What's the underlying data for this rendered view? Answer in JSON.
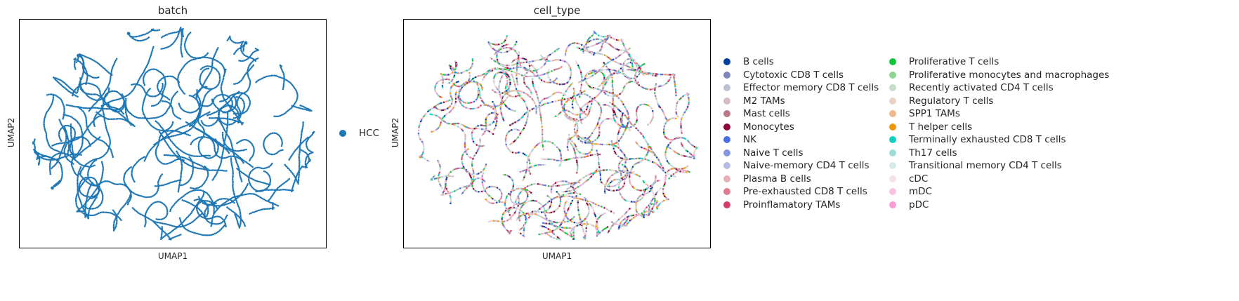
{
  "chart_data": [
    {
      "type": "scatter",
      "title": "batch",
      "xlabel": "UMAP1",
      "ylabel": "UMAP2",
      "grid": false,
      "legend_placement": "right",
      "legend": [
        {
          "label": "HCC",
          "color": "#1f77b4"
        }
      ],
      "point_color_mode": "single"
    },
    {
      "type": "scatter",
      "title": "cell_type",
      "xlabel": "UMAP1",
      "ylabel": "UMAP2",
      "grid": false,
      "legend_placement": "right",
      "legend": [
        {
          "label": "B cells",
          "color": "#023fa5"
        },
        {
          "label": "Cytotoxic CD8 T cells",
          "color": "#7d87b9"
        },
        {
          "label": "Effector memory CD8 T cells",
          "color": "#bec1d4"
        },
        {
          "label": "M2 TAMs",
          "color": "#d6bcc0"
        },
        {
          "label": "Mast cells",
          "color": "#bb7784"
        },
        {
          "label": "Monocytes",
          "color": "#8e063b"
        },
        {
          "label": "NK",
          "color": "#4a6fe3"
        },
        {
          "label": "Naive T cells",
          "color": "#8595e1"
        },
        {
          "label": "Naive-memory CD4 T cells",
          "color": "#b5bbe3"
        },
        {
          "label": "Plasma B cells",
          "color": "#e6afb9"
        },
        {
          "label": "Pre-exhausted CD8 T cells",
          "color": "#e07b91"
        },
        {
          "label": "Proinflamatory TAMs",
          "color": "#d33f6a"
        },
        {
          "label": "Proliferative T cells",
          "color": "#11c638"
        },
        {
          "label": "Proliferative monocytes and macrophages",
          "color": "#8dd593"
        },
        {
          "label": "Recently activated CD4 T cells",
          "color": "#c6dec7"
        },
        {
          "label": "Regulatory T cells",
          "color": "#ead3c6"
        },
        {
          "label": "SPP1 TAMs",
          "color": "#f0b98d"
        },
        {
          "label": "T helper cells",
          "color": "#ef9708"
        },
        {
          "label": "Terminally exhausted CD8 T cells",
          "color": "#0fcfc0"
        },
        {
          "label": "Th17 cells",
          "color": "#9cded6"
        },
        {
          "label": "Transitional memory CD4 T cells",
          "color": "#d5eae7"
        },
        {
          "label": "cDC",
          "color": "#f3e1eb"
        },
        {
          "label": "mDC",
          "color": "#f6c4e1"
        },
        {
          "label": "pDC",
          "color": "#f79cd4"
        }
      ],
      "point_color_mode": "categorical"
    }
  ]
}
